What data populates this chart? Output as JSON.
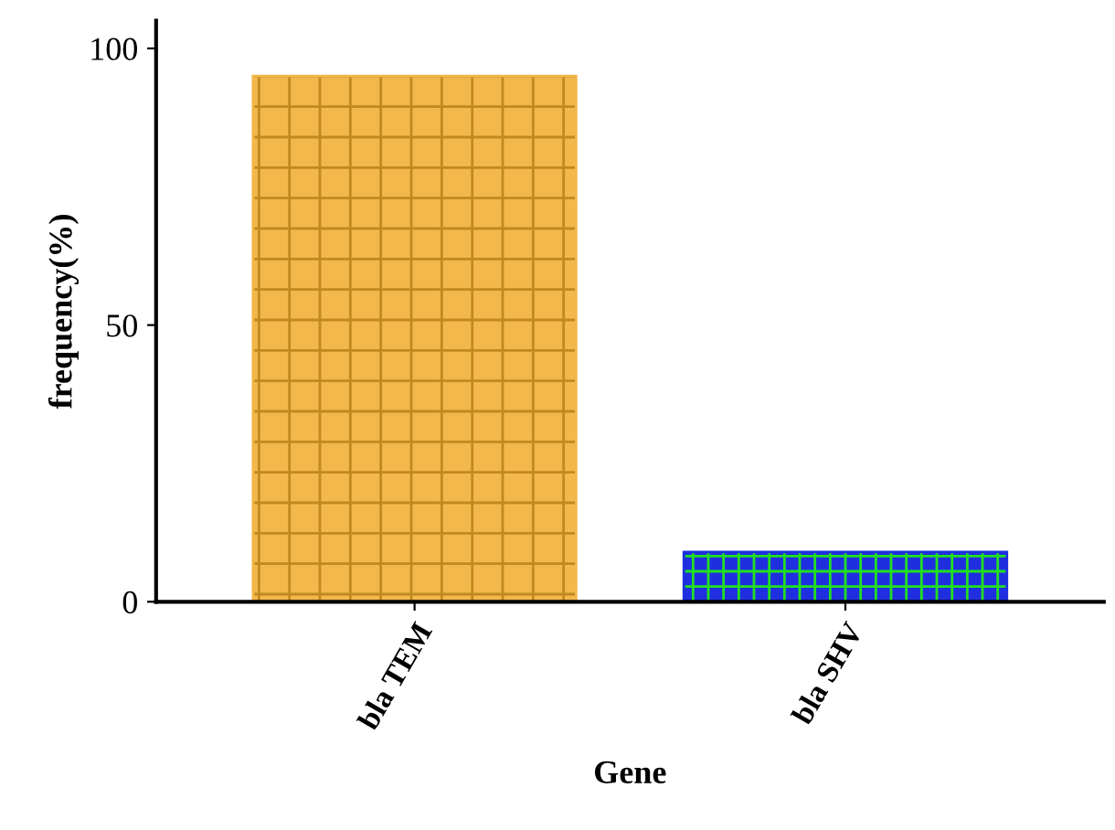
{
  "chart_data": {
    "type": "bar",
    "xlabel": "Gene",
    "ylabel": "frequency(%)",
    "categories": [
      "bla TEM",
      "bla SHV"
    ],
    "values": [
      95,
      9
    ],
    "colors": [
      "#f2b84b",
      "#1f2fe0"
    ],
    "ylim": [
      0,
      105
    ],
    "yticks": [
      0,
      50,
      100
    ],
    "grid": false,
    "legend": false
  }
}
